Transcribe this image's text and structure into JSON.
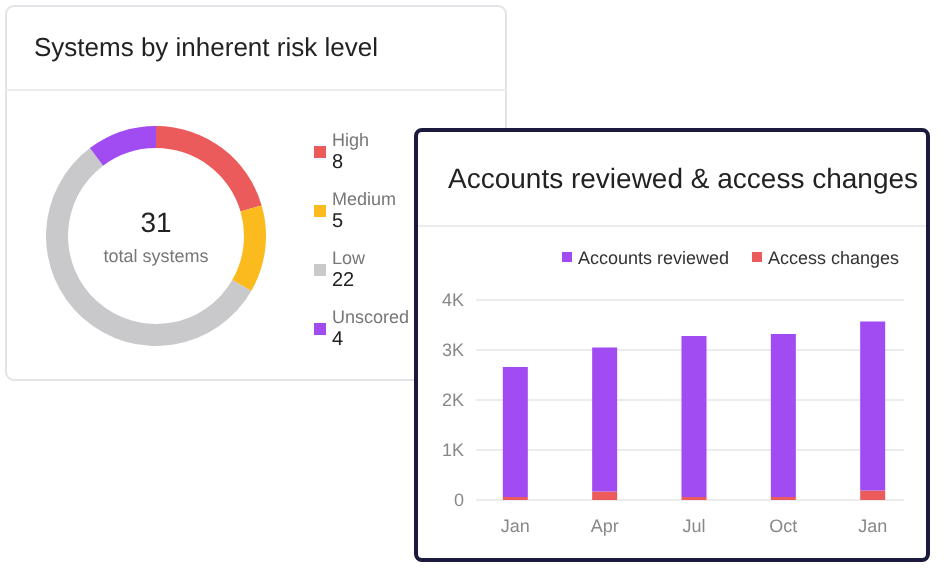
{
  "chart_data": [
    {
      "type": "donut",
      "title": "Systems by inherent risk level",
      "categories": [
        "High",
        "Medium",
        "Low",
        "Unscored"
      ],
      "values": [
        8,
        5,
        22,
        4
      ],
      "colors": [
        "#ec5b5b",
        "#fbbb1e",
        "#c9c9cc",
        "#a14cf2"
      ],
      "legend": "right",
      "data_labels": true,
      "annotations": [
        "31",
        "total systems"
      ]
    },
    {
      "type": "bar",
      "title": "Accounts reviewed & access changes",
      "categories": [
        "Jan",
        "Apr",
        "Jul",
        "Oct",
        "Jan"
      ],
      "stacked": true,
      "series": [
        {
          "name": "Access changes",
          "color": "#ec5b5b",
          "values": [
            60,
            170,
            60,
            60,
            190
          ]
        },
        {
          "name": "Accounts reviewed",
          "color": "#a14cf2",
          "values": [
            2600,
            2880,
            3220,
            3260,
            3380
          ]
        }
      ],
      "ylim": [
        0,
        4000
      ],
      "yticks": [
        0,
        {
          "value": 1000,
          "label": "1K"
        },
        {
          "value": 2000,
          "label": "2K"
        },
        {
          "value": 3000,
          "label": "3K"
        },
        {
          "value": 4000,
          "label": "4K"
        }
      ],
      "grid": "y",
      "legend": "top right"
    }
  ]
}
